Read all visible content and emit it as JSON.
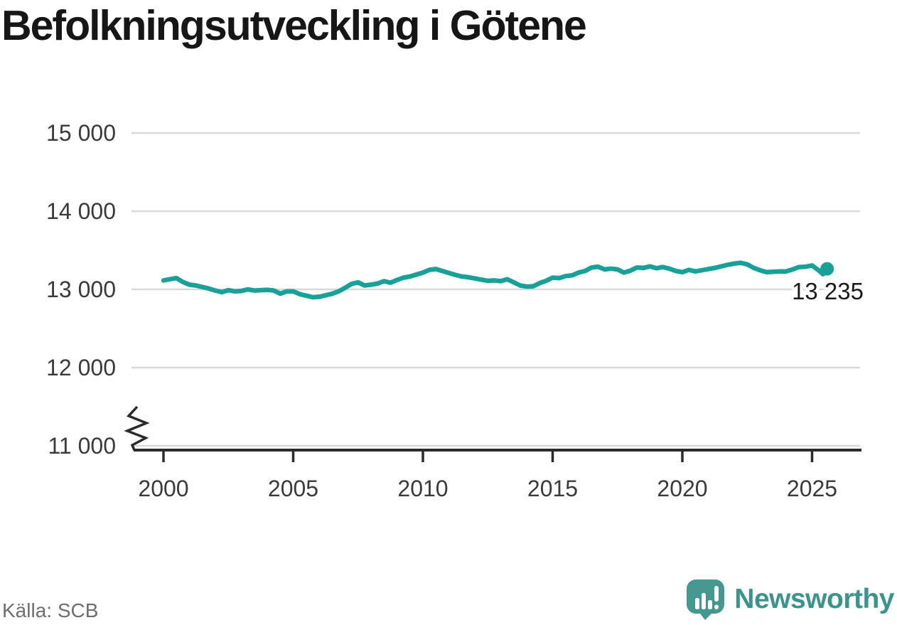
{
  "title": "Befolkningsutveckling i Götene",
  "source": "Källa: SCB",
  "branding": {
    "name": "Newsworthy",
    "icon": "newsworthy-speech-bubble-bar-chart-icon",
    "text_color": "#3a948c",
    "icon_color": "#44988f"
  },
  "colors": {
    "line": "#18a198",
    "grid": "#d9d9d9",
    "axis": "#2b2b2b",
    "tick_text": "#3a3a3a",
    "end_label_text": "#1a1a1a",
    "title_text": "#161616",
    "source_text": "#6e6e6e"
  },
  "chart_data": {
    "type": "line",
    "title": "Befolkningsutveckling i Götene",
    "xlabel": "",
    "ylabel": "",
    "grid": true,
    "legend": "none",
    "axis_break": true,
    "xlim": [
      1998.8,
      2026.8
    ],
    "ylim": [
      11000,
      15450
    ],
    "x_ticks": [
      2000,
      2005,
      2010,
      2015,
      2020,
      2025
    ],
    "x_tick_labels": [
      "2000",
      "2005",
      "2010",
      "2015",
      "2020",
      "2025"
    ],
    "y_ticks": [
      15000,
      14000,
      13000,
      12000,
      11000
    ],
    "y_tick_labels": [
      "15 000",
      "14 000",
      "13 000",
      "12 000",
      "11 000"
    ],
    "end_label": "13 235",
    "end_value": 13235,
    "series_name": "Befolkning",
    "x": [
      2000.0,
      2000.25,
      2000.5,
      2000.75,
      2001.0,
      2001.25,
      2001.5,
      2001.75,
      2002.0,
      2002.25,
      2002.5,
      2002.75,
      2003.0,
      2003.25,
      2003.5,
      2003.75,
      2004.0,
      2004.25,
      2004.5,
      2004.75,
      2005.0,
      2005.25,
      2005.5,
      2005.75,
      2006.0,
      2006.25,
      2006.5,
      2006.75,
      2007.0,
      2007.25,
      2007.5,
      2007.75,
      2008.0,
      2008.25,
      2008.5,
      2008.75,
      2009.0,
      2009.25,
      2009.5,
      2009.75,
      2010.0,
      2010.25,
      2010.5,
      2010.75,
      2011.0,
      2011.25,
      2011.5,
      2011.75,
      2012.0,
      2012.25,
      2012.5,
      2012.75,
      2013.0,
      2013.25,
      2013.5,
      2013.75,
      2014.0,
      2014.25,
      2014.5,
      2014.75,
      2015.0,
      2015.25,
      2015.5,
      2015.75,
      2016.0,
      2016.25,
      2016.5,
      2016.75,
      2017.0,
      2017.25,
      2017.5,
      2017.75,
      2018.0,
      2018.25,
      2018.5,
      2018.75,
      2019.0,
      2019.25,
      2019.5,
      2019.75,
      2020.0,
      2020.25,
      2020.5,
      2020.75,
      2021.0,
      2021.25,
      2021.5,
      2021.75,
      2022.0,
      2022.25,
      2022.5,
      2022.75,
      2023.0,
      2023.25,
      2023.5,
      2023.75,
      2024.0,
      2024.25,
      2024.5,
      2024.75,
      2025.0,
      2025.25,
      2025.42,
      2025.58
    ],
    "values": [
      13115,
      13130,
      13145,
      13095,
      13060,
      13050,
      13030,
      13010,
      12985,
      12965,
      12990,
      12975,
      12980,
      13000,
      12985,
      12990,
      12995,
      12985,
      12945,
      12975,
      12975,
      12940,
      12920,
      12900,
      12905,
      12925,
      12945,
      12975,
      13020,
      13070,
      13090,
      13050,
      13060,
      13075,
      13105,
      13085,
      13120,
      13150,
      13165,
      13190,
      13215,
      13250,
      13260,
      13235,
      13210,
      13185,
      13165,
      13155,
      13140,
      13125,
      13110,
      13115,
      13105,
      13130,
      13090,
      13050,
      13035,
      13040,
      13080,
      13110,
      13150,
      13145,
      13170,
      13180,
      13215,
      13235,
      13280,
      13290,
      13255,
      13265,
      13255,
      13215,
      13240,
      13280,
      13275,
      13295,
      13270,
      13285,
      13265,
      13235,
      13220,
      13250,
      13230,
      13245,
      13260,
      13275,
      13295,
      13315,
      13330,
      13340,
      13320,
      13275,
      13245,
      13220,
      13225,
      13230,
      13230,
      13255,
      13285,
      13290,
      13305,
      13245,
      13195,
      13235
    ]
  }
}
